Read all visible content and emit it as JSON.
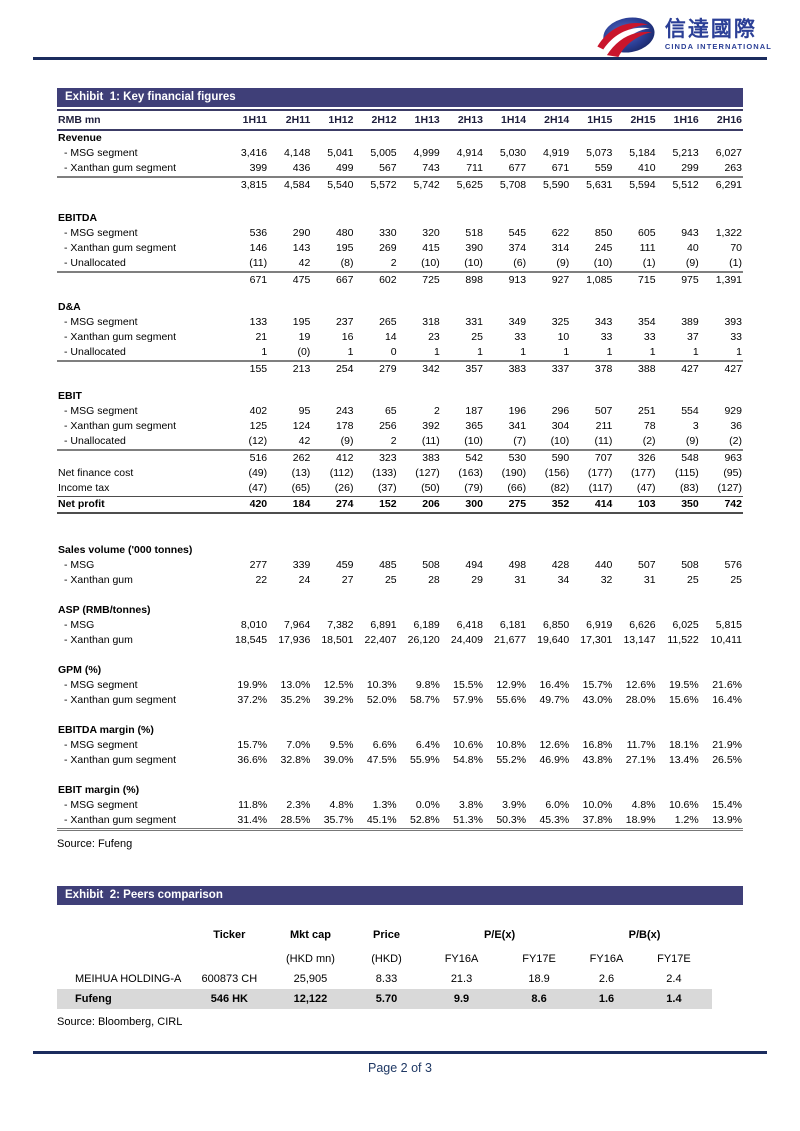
{
  "logo": {
    "chinese": "信達國際",
    "english": "CINDA INTERNATIONAL"
  },
  "exhibit1": {
    "title": "Exhibit  1: Key financial figures",
    "columns": [
      "RMB mn",
      "1H11",
      "2H11",
      "1H12",
      "2H12",
      "1H13",
      "2H13",
      "1H14",
      "2H14",
      "1H15",
      "2H15",
      "1H16",
      "2H16"
    ],
    "rows": [
      {
        "type": "section",
        "label": "Revenue"
      },
      {
        "type": "item",
        "label": "- MSG segment",
        "values": [
          "3,416",
          "4,148",
          "5,041",
          "5,005",
          "4,999",
          "4,914",
          "5,030",
          "4,919",
          "5,073",
          "5,184",
          "5,213",
          "6,027"
        ]
      },
      {
        "type": "item",
        "label": "- Xanthan gum segment",
        "values": [
          "399",
          "436",
          "499",
          "567",
          "743",
          "711",
          "677",
          "671",
          "559",
          "410",
          "299",
          "263"
        ]
      },
      {
        "type": "total",
        "label": "",
        "values": [
          "3,815",
          "4,584",
          "5,540",
          "5,572",
          "5,742",
          "5,625",
          "5,708",
          "5,590",
          "5,631",
          "5,594",
          "5,512",
          "6,291"
        ]
      },
      {
        "type": "spacer",
        "h": 18
      },
      {
        "type": "section",
        "label": "EBITDA"
      },
      {
        "type": "item",
        "label": "- MSG segment",
        "values": [
          "536",
          "290",
          "480",
          "330",
          "320",
          "518",
          "545",
          "622",
          "850",
          "605",
          "943",
          "1,322"
        ]
      },
      {
        "type": "item",
        "label": "- Xanthan gum segment",
        "values": [
          "146",
          "143",
          "195",
          "269",
          "415",
          "390",
          "374",
          "314",
          "245",
          "111",
          "40",
          "70"
        ]
      },
      {
        "type": "item",
        "label": "- Unallocated",
        "values": [
          "(11)",
          "42",
          "(8)",
          "2",
          "(10)",
          "(10)",
          "(6)",
          "(9)",
          "(10)",
          "(1)",
          "(9)",
          "(1)"
        ]
      },
      {
        "type": "total",
        "label": "",
        "values": [
          "671",
          "475",
          "667",
          "602",
          "725",
          "898",
          "913",
          "927",
          "1,085",
          "715",
          "975",
          "1,391"
        ]
      },
      {
        "type": "spacer",
        "h": 12
      },
      {
        "type": "section",
        "label": "D&A"
      },
      {
        "type": "item",
        "label": "- MSG segment",
        "values": [
          "133",
          "195",
          "237",
          "265",
          "318",
          "331",
          "349",
          "325",
          "343",
          "354",
          "389",
          "393"
        ]
      },
      {
        "type": "item",
        "label": "- Xanthan gum segment",
        "values": [
          "21",
          "19",
          "16",
          "14",
          "23",
          "25",
          "33",
          "10",
          "33",
          "33",
          "37",
          "33"
        ]
      },
      {
        "type": "item",
        "label": "- Unallocated",
        "values": [
          "1",
          "(0)",
          "1",
          "0",
          "1",
          "1",
          "1",
          "1",
          "1",
          "1",
          "1",
          "1"
        ]
      },
      {
        "type": "total",
        "label": "",
        "values": [
          "155",
          "213",
          "254",
          "279",
          "342",
          "357",
          "383",
          "337",
          "378",
          "388",
          "427",
          "427"
        ]
      },
      {
        "type": "spacer",
        "h": 12
      },
      {
        "type": "section",
        "label": "EBIT"
      },
      {
        "type": "item",
        "label": "- MSG segment",
        "values": [
          "402",
          "95",
          "243",
          "65",
          "2",
          "187",
          "196",
          "296",
          "507",
          "251",
          "554",
          "929"
        ]
      },
      {
        "type": "item",
        "label": "- Xanthan gum segment",
        "values": [
          "125",
          "124",
          "178",
          "256",
          "392",
          "365",
          "341",
          "304",
          "211",
          "78",
          "3",
          "36"
        ]
      },
      {
        "type": "item",
        "label": "- Unallocated",
        "values": [
          "(12)",
          "42",
          "(9)",
          "2",
          "(11)",
          "(10)",
          "(7)",
          "(10)",
          "(11)",
          "(2)",
          "(9)",
          "(2)"
        ]
      },
      {
        "type": "total",
        "label": "",
        "values": [
          "516",
          "262",
          "412",
          "323",
          "383",
          "542",
          "530",
          "590",
          "707",
          "326",
          "548",
          "963"
        ]
      },
      {
        "type": "plain",
        "label": "Net finance cost",
        "values": [
          "(49)",
          "(13)",
          "(112)",
          "(133)",
          "(127)",
          "(163)",
          "(190)",
          "(156)",
          "(177)",
          "(177)",
          "(115)",
          "(95)"
        ]
      },
      {
        "type": "plain",
        "label": "Income tax",
        "values": [
          "(47)",
          "(65)",
          "(26)",
          "(37)",
          "(50)",
          "(79)",
          "(66)",
          "(82)",
          "(117)",
          "(47)",
          "(83)",
          "(127)"
        ]
      },
      {
        "type": "netprofit",
        "label": "Net profit",
        "values": [
          "420",
          "184",
          "274",
          "152",
          "206",
          "300",
          "275",
          "352",
          "414",
          "103",
          "350",
          "742"
        ]
      },
      {
        "type": "spacer",
        "h": 30
      },
      {
        "type": "section",
        "label": "Sales volume ('000 tonnes)"
      },
      {
        "type": "item",
        "label": "- MSG",
        "values": [
          "277",
          "339",
          "459",
          "485",
          "508",
          "494",
          "498",
          "428",
          "440",
          "507",
          "508",
          "576"
        ]
      },
      {
        "type": "item",
        "label": "- Xanthan gum",
        "values": [
          "22",
          "24",
          "27",
          "25",
          "28",
          "29",
          "31",
          "34",
          "32",
          "31",
          "25",
          "25"
        ]
      },
      {
        "type": "spacer",
        "h": 15
      },
      {
        "type": "section",
        "label": "ASP (RMB/tonnes)"
      },
      {
        "type": "item",
        "label": "- MSG",
        "values": [
          "8,010",
          "7,964",
          "7,382",
          "6,891",
          "6,189",
          "6,418",
          "6,181",
          "6,850",
          "6,919",
          "6,626",
          "6,025",
          "5,815"
        ]
      },
      {
        "type": "item",
        "label": "- Xanthan gum",
        "values": [
          "18,545",
          "17,936",
          "18,501",
          "22,407",
          "26,120",
          "24,409",
          "21,677",
          "19,640",
          "17,301",
          "13,147",
          "11,522",
          "10,411"
        ]
      },
      {
        "type": "spacer",
        "h": 15
      },
      {
        "type": "section",
        "label": "GPM (%)"
      },
      {
        "type": "item",
        "label": "- MSG segment",
        "values": [
          "19.9%",
          "13.0%",
          "12.5%",
          "10.3%",
          "9.8%",
          "15.5%",
          "12.9%",
          "16.4%",
          "15.7%",
          "12.6%",
          "19.5%",
          "21.6%"
        ]
      },
      {
        "type": "item",
        "label": "- Xanthan gum segment",
        "values": [
          "37.2%",
          "35.2%",
          "39.2%",
          "52.0%",
          "58.7%",
          "57.9%",
          "55.6%",
          "49.7%",
          "43.0%",
          "28.0%",
          "15.6%",
          "16.4%"
        ]
      },
      {
        "type": "spacer",
        "h": 15
      },
      {
        "type": "section",
        "label": "EBITDA margin (%)"
      },
      {
        "type": "item",
        "label": "- MSG segment",
        "values": [
          "15.7%",
          "7.0%",
          "9.5%",
          "6.6%",
          "6.4%",
          "10.6%",
          "10.8%",
          "12.6%",
          "16.8%",
          "11.7%",
          "18.1%",
          "21.9%"
        ]
      },
      {
        "type": "item",
        "label": "- Xanthan gum segment",
        "values": [
          "36.6%",
          "32.8%",
          "39.0%",
          "47.5%",
          "55.9%",
          "54.8%",
          "55.2%",
          "46.9%",
          "43.8%",
          "27.1%",
          "13.4%",
          "26.5%"
        ]
      },
      {
        "type": "spacer",
        "h": 15
      },
      {
        "type": "section",
        "label": "EBIT margin (%)"
      },
      {
        "type": "item",
        "label": "- MSG segment",
        "values": [
          "11.8%",
          "2.3%",
          "4.8%",
          "1.3%",
          "0.0%",
          "3.8%",
          "3.9%",
          "6.0%",
          "10.0%",
          "4.8%",
          "10.6%",
          "15.4%"
        ]
      },
      {
        "type": "item",
        "label": "- Xanthan gum segment",
        "values": [
          "31.4%",
          "28.5%",
          "35.7%",
          "45.1%",
          "52.8%",
          "51.3%",
          "50.3%",
          "45.3%",
          "37.8%",
          "18.9%",
          "1.2%",
          "13.9%"
        ],
        "last": true
      }
    ],
    "source": "Source: Fufeng"
  },
  "exhibit2": {
    "title": "Exhibit  2: Peers comparison",
    "group_headers": {
      "ticker": "Ticker",
      "mktcap": "Mkt cap",
      "price": "Price",
      "pe": "P/E(x)",
      "pb": "P/B(x)"
    },
    "sub_headers": [
      "(HKD mn)",
      "(HKD)",
      "FY16A",
      "FY17E",
      "FY16A",
      "FY17E"
    ],
    "rows": [
      {
        "name": "MEIHUA HOLDING-A",
        "values": [
          "600873 CH",
          "25,905",
          "8.33",
          "21.3",
          "18.9",
          "2.6",
          "2.4"
        ],
        "highlight": false
      },
      {
        "name": "Fufeng",
        "values": [
          "546 HK",
          "12,122",
          "5.70",
          "9.9",
          "8.6",
          "1.6",
          "1.4"
        ],
        "highlight": true
      }
    ],
    "source": "Source: Bloomberg, CIRL"
  },
  "footer": {
    "page": "Page 2 of 3"
  },
  "colors": {
    "band": "#3f3f78",
    "brand_blue": "#2b3f96",
    "accent_red": "#c9152c",
    "highlight": "#d9d9d9",
    "rule": "#1b2c5e"
  }
}
